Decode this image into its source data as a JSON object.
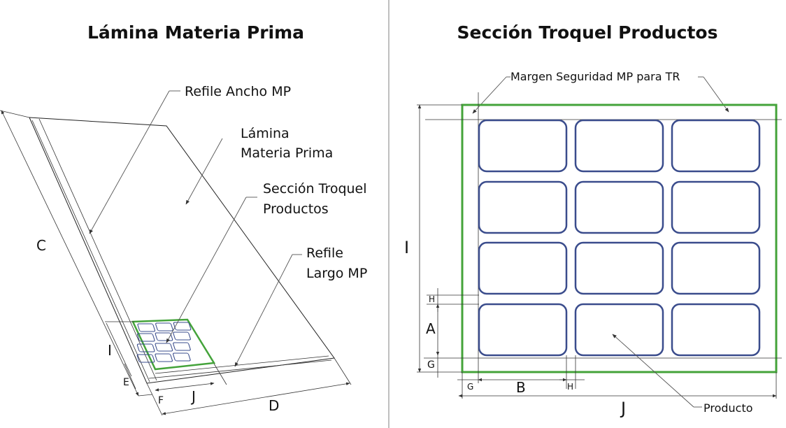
{
  "left_panel": {
    "title": "Lámina Materia Prima",
    "labels": {
      "refile_ancho": "Refile Ancho MP",
      "lamina_line1": "Lámina",
      "lamina_line2": "Materia Prima",
      "seccion_line1": "Sección Troquel",
      "seccion_line2": "Productos",
      "refile_largo_line1": "Refile",
      "refile_largo_line2": "Largo MP"
    },
    "dimensions": {
      "c": "C",
      "i": "I",
      "e": "E",
      "f": "F",
      "j": "J",
      "d": "D"
    }
  },
  "right_panel": {
    "title": "Sección Troquel Productos",
    "labels": {
      "margen": "Margen Seguridad MP para TR",
      "producto": "Producto"
    },
    "dimensions": {
      "i": "I",
      "h_vertical": "H",
      "a": "A",
      "g_vertical": "G",
      "g_horizontal": "G",
      "b": "B",
      "h_horizontal": "H",
      "j": "J"
    }
  },
  "colors": {
    "green": "#44a33a",
    "blue": "#3a4c8c",
    "line": "#333333",
    "divider": "#aaaaaa"
  }
}
